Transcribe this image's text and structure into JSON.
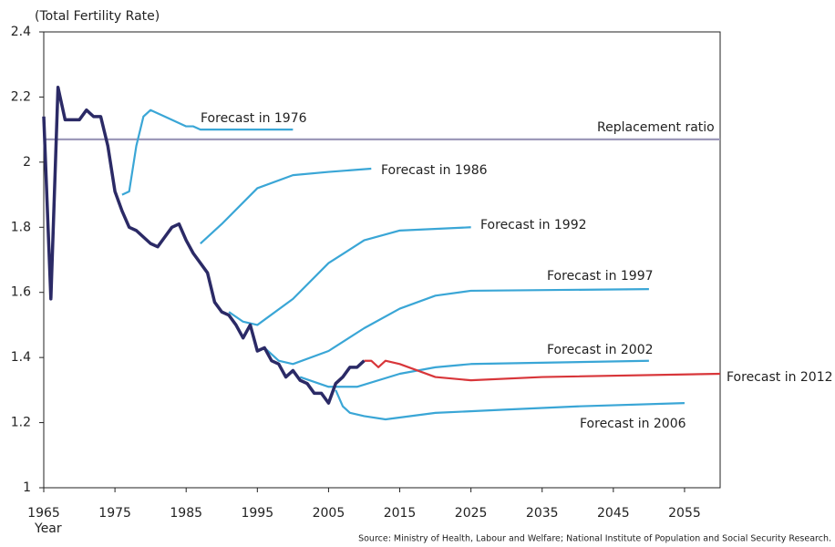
{
  "chart_data": {
    "type": "line",
    "y_label": "(Total Fertility Rate)",
    "x_label": "Year",
    "source": "Source:  Ministry of Health, Labour and Welfare; National Institute of Population and Social Security Research.",
    "xlim": [
      1965,
      2060
    ],
    "xticks": [
      1965,
      1975,
      1985,
      1995,
      2005,
      2015,
      2025,
      2035,
      2045,
      2055
    ],
    "ylim": [
      1,
      2.4
    ],
    "yticks": [
      1,
      1.2,
      1.4,
      1.6,
      1.8,
      2,
      2.2,
      2.4
    ],
    "series": [
      {
        "name": "Replacement ratio",
        "color": "#9d99b9",
        "x": [
          1965,
          2060
        ],
        "values": [
          2.07,
          2.07
        ]
      },
      {
        "name": "Forecast in 1976",
        "color": "#3aa6d6",
        "x": [
          1976,
          1977,
          1978,
          1979,
          1980,
          1985,
          1986,
          1987,
          2000
        ],
        "values": [
          1.9,
          1.91,
          2.05,
          2.14,
          2.16,
          2.11,
          2.11,
          2.1,
          2.1
        ]
      },
      {
        "name": "Forecast in 1986",
        "color": "#3aa6d6",
        "x": [
          1987,
          1990,
          1995,
          2000,
          2005,
          2011
        ],
        "values": [
          1.75,
          1.81,
          1.92,
          1.96,
          1.97,
          1.98
        ]
      },
      {
        "name": "Forecast in 1992",
        "color": "#3aa6d6",
        "x": [
          1991,
          1993,
          1995,
          2000,
          2005,
          2010,
          2015,
          2025
        ],
        "values": [
          1.54,
          1.51,
          1.5,
          1.58,
          1.69,
          1.76,
          1.79,
          1.8
        ]
      },
      {
        "name": "Forecast in 1997",
        "color": "#3aa6d6",
        "x": [
          1996,
          1998,
          2000,
          2005,
          2010,
          2015,
          2020,
          2025,
          2050
        ],
        "values": [
          1.43,
          1.39,
          1.38,
          1.42,
          1.49,
          1.55,
          1.59,
          1.605,
          1.61
        ]
      },
      {
        "name": "Forecast in 2002",
        "color": "#3aa6d6",
        "x": [
          2001,
          2005,
          2009,
          2015,
          2020,
          2025,
          2050
        ],
        "values": [
          1.34,
          1.31,
          1.31,
          1.35,
          1.37,
          1.38,
          1.39
        ]
      },
      {
        "name": "Forecast in 2006",
        "color": "#3aa6d6",
        "x": [
          2006,
          2007,
          2008,
          2010,
          2013,
          2020,
          2030,
          2040,
          2055
        ],
        "values": [
          1.3,
          1.25,
          1.23,
          1.22,
          1.21,
          1.23,
          1.24,
          1.25,
          1.26
        ]
      },
      {
        "name": "Forecast in 2012",
        "color": "#d8363a",
        "x": [
          2010,
          2011,
          2012,
          2013,
          2015,
          2020,
          2025,
          2035,
          2060
        ],
        "values": [
          1.39,
          1.39,
          1.37,
          1.39,
          1.38,
          1.34,
          1.33,
          1.34,
          1.35
        ]
      },
      {
        "color": "#2b2a66",
        "x": [
          1965,
          1966,
          1967,
          1968,
          1969,
          1970,
          1971,
          1972,
          1973,
          1974,
          1975,
          1976,
          1977,
          1978,
          1979,
          1980,
          1981,
          1982,
          1983,
          1984,
          1985,
          1986,
          1987,
          1988,
          1989,
          1990,
          1991,
          1992,
          1993,
          1994,
          1995,
          1996,
          1997,
          1998,
          1999,
          2000,
          2001,
          2002,
          2003,
          2004,
          2005,
          2006,
          2007,
          2008,
          2009,
          2010
        ],
        "values": [
          2.14,
          1.58,
          2.23,
          2.13,
          2.13,
          2.13,
          2.16,
          2.14,
          2.14,
          2.05,
          1.91,
          1.85,
          1.8,
          1.79,
          1.77,
          1.75,
          1.74,
          1.77,
          1.8,
          1.81,
          1.76,
          1.72,
          1.69,
          1.66,
          1.57,
          1.54,
          1.53,
          1.5,
          1.46,
          1.5,
          1.42,
          1.43,
          1.39,
          1.38,
          1.34,
          1.36,
          1.33,
          1.32,
          1.29,
          1.29,
          1.26,
          1.32,
          1.34,
          1.37,
          1.37,
          1.39
        ]
      }
    ]
  }
}
